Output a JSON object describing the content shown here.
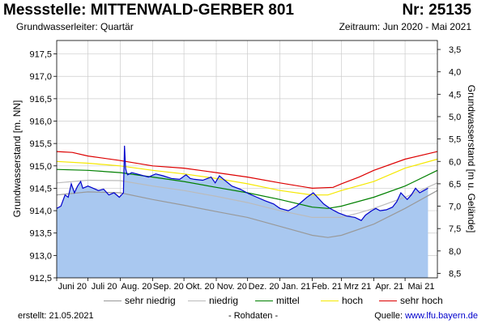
{
  "header": {
    "title": "Messstelle: MITTENWALD-GERBER 801",
    "nr": "Nr: 25135",
    "aquifer": "Grundwasserleiter: Quartär",
    "period": "Zeitraum: Jun 2020 - Mai 2021"
  },
  "footer": {
    "created": "erstellt:  21.05.2021",
    "raw": "- Rohdaten -",
    "source_prefix": "Quelle: ",
    "source_link": "www.lfu.bayern.de"
  },
  "colors": {
    "fill": "#a9c8f0",
    "measured": "#0000cc",
    "sehr_niedrig": "#999999",
    "niedrig": "#bbbbbb",
    "mittel": "#008000",
    "hoch": "#f5e800",
    "sehr_hoch": "#dd0000"
  },
  "chart_data": {
    "type": "area",
    "ylabel": "Grundwasserstand [m. NN]",
    "y2label": "Grundwasserstand [m u. Gelände]",
    "ylim": [
      912.5,
      917.8
    ],
    "y2lim": [
      8.6,
      3.3
    ],
    "yticks": [
      "912,5",
      "913,0",
      "913,5",
      "914,0",
      "914,5",
      "915,0",
      "915,5",
      "916,0",
      "916,5",
      "917,0",
      "917,5"
    ],
    "y2ticks": [
      "3,5",
      "4,0",
      "4,5",
      "5,0",
      "5,5",
      "6,0",
      "6,5",
      "7,0",
      "7,5",
      "8,0",
      "8,5"
    ],
    "xlim": [
      0,
      365
    ],
    "month_labels": [
      "Juni 20",
      "Juli 20",
      "Aug. 20",
      "Sep. 20",
      "Okt. 20",
      "Nov. 20",
      "Dez. 20",
      "Jan. 21",
      "Feb. 21",
      "Mrz 21",
      "Apr. 21",
      "Mai 21"
    ],
    "month_starts": [
      0,
      30,
      61,
      92,
      122,
      153,
      183,
      214,
      245,
      273,
      304,
      334
    ],
    "grid": true,
    "legend": "bottom",
    "series": [
      {
        "name": "sehr niedrig",
        "key": "sehr_niedrig",
        "x": [
          0,
          30,
          61,
          92,
          122,
          153,
          183,
          214,
          245,
          260,
          273,
          304,
          334,
          365
        ],
        "y": [
          914.35,
          914.42,
          914.4,
          914.25,
          914.12,
          913.98,
          913.85,
          913.65,
          913.45,
          913.4,
          913.45,
          913.7,
          914.05,
          914.45
        ]
      },
      {
        "name": "niedrig",
        "key": "niedrig",
        "x": [
          0,
          30,
          61,
          92,
          122,
          153,
          183,
          214,
          245,
          273,
          290,
          304,
          334,
          365
        ],
        "y": [
          914.62,
          914.68,
          914.67,
          914.55,
          914.45,
          914.32,
          914.18,
          914.0,
          913.85,
          913.85,
          913.95,
          914.05,
          914.3,
          914.62
        ]
      },
      {
        "name": "mittel",
        "key": "mittel",
        "x": [
          0,
          30,
          61,
          92,
          122,
          153,
          183,
          214,
          245,
          260,
          273,
          304,
          334,
          365
        ],
        "y": [
          914.92,
          914.9,
          914.85,
          914.75,
          914.65,
          914.52,
          914.4,
          914.25,
          914.08,
          914.05,
          914.1,
          914.3,
          914.55,
          914.9
        ]
      },
      {
        "name": "hoch",
        "key": "hoch",
        "x": [
          0,
          30,
          61,
          92,
          122,
          153,
          183,
          214,
          245,
          260,
          273,
          304,
          334,
          365
        ],
        "y": [
          915.1,
          915.06,
          915.0,
          914.9,
          914.82,
          914.72,
          914.6,
          914.45,
          914.35,
          914.35,
          914.45,
          914.65,
          914.95,
          915.15
        ]
      },
      {
        "name": "sehr hoch",
        "key": "sehr_hoch",
        "x": [
          0,
          15,
          30,
          61,
          92,
          122,
          153,
          183,
          214,
          245,
          265,
          273,
          290,
          304,
          334,
          365
        ],
        "y": [
          915.32,
          915.3,
          915.22,
          915.12,
          915.0,
          914.95,
          914.85,
          914.75,
          914.62,
          914.5,
          914.52,
          914.6,
          914.75,
          914.9,
          915.15,
          915.32
        ]
      },
      {
        "name": "Messwerte",
        "key": "measured",
        "x": [
          0,
          4,
          8,
          11,
          14,
          17,
          20,
          23,
          25,
          30,
          35,
          40,
          45,
          50,
          55,
          60,
          64,
          65,
          66,
          67,
          68,
          72,
          80,
          88,
          95,
          102,
          110,
          118,
          124,
          128,
          132,
          140,
          148,
          152,
          156,
          160,
          168,
          176,
          184,
          192,
          200,
          208,
          214,
          222,
          230,
          240,
          246,
          250,
          256,
          262,
          270,
          278,
          286,
          292,
          296,
          302,
          306,
          310,
          316,
          322,
          326,
          330,
          336,
          340,
          344,
          348,
          352,
          356
        ],
        "y": [
          914.05,
          914.1,
          914.35,
          914.3,
          914.6,
          914.4,
          914.55,
          914.65,
          914.5,
          914.55,
          914.5,
          914.45,
          914.48,
          914.35,
          914.4,
          914.3,
          914.4,
          915.45,
          914.95,
          914.85,
          914.8,
          914.85,
          914.8,
          914.75,
          914.82,
          914.78,
          914.72,
          914.7,
          914.8,
          914.72,
          914.7,
          914.68,
          914.75,
          914.62,
          914.78,
          914.7,
          914.55,
          914.48,
          914.38,
          914.3,
          914.22,
          914.15,
          914.05,
          914.0,
          914.1,
          914.3,
          914.4,
          914.3,
          914.15,
          914.05,
          913.95,
          913.88,
          913.85,
          913.78,
          913.9,
          914.0,
          914.05,
          914.0,
          914.02,
          914.08,
          914.2,
          914.4,
          914.25,
          914.35,
          914.5,
          914.4,
          914.45,
          914.5
        ]
      }
    ]
  }
}
